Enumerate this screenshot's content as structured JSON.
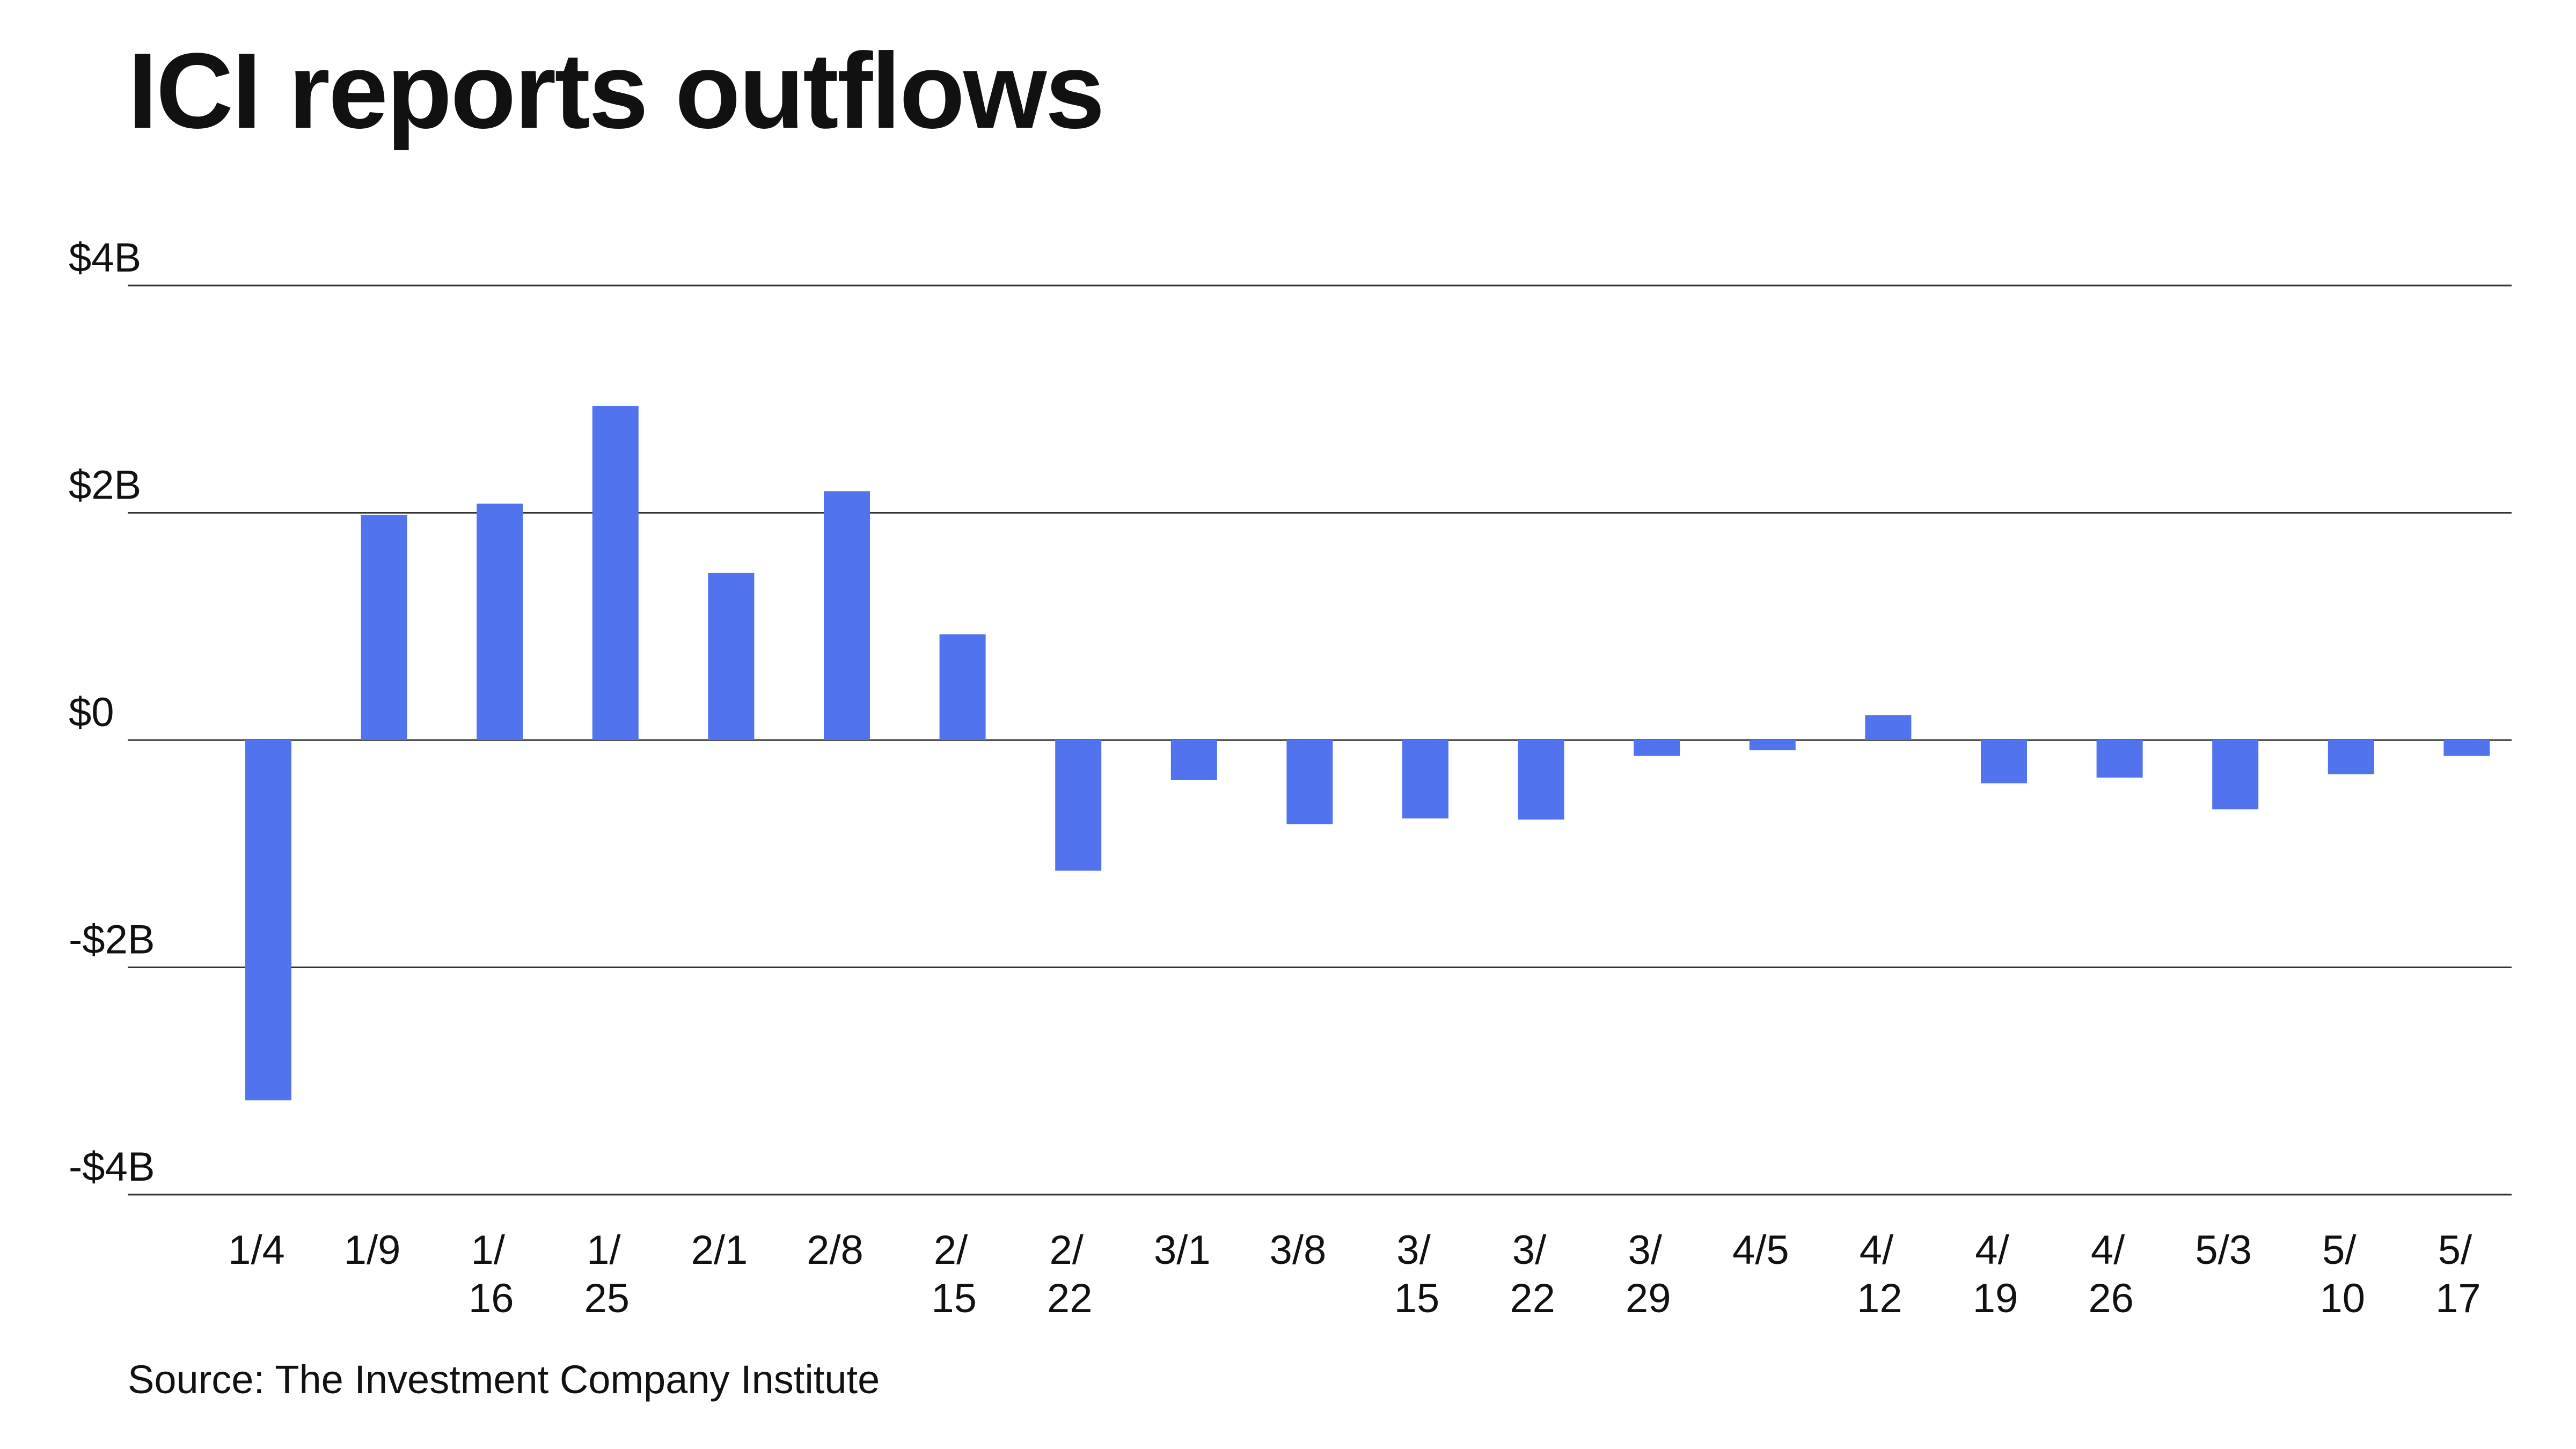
{
  "title": "ICI reports outflows",
  "source": "Source: The Investment Company Institute",
  "colors": {
    "bar": "#5173ee",
    "grid": "#333333",
    "text": "#111111"
  },
  "chart_data": {
    "type": "bar",
    "title": "ICI reports outflows",
    "xlabel": "",
    "ylabel": "",
    "ylim": [
      -4,
      4
    ],
    "grid": true,
    "legend": "none",
    "y_ticks": [
      {
        "value": 4,
        "label": "$4B"
      },
      {
        "value": 2,
        "label": "$2B"
      },
      {
        "value": 0,
        "label": "$0"
      },
      {
        "value": -2,
        "label": "-$2B"
      },
      {
        "value": -4,
        "label": "-$4B"
      }
    ],
    "categories": [
      {
        "line1": "1/4",
        "line2": ""
      },
      {
        "line1": "1/9",
        "line2": ""
      },
      {
        "line1": "1/",
        "line2": "16"
      },
      {
        "line1": "1/",
        "line2": "25"
      },
      {
        "line1": "2/1",
        "line2": ""
      },
      {
        "line1": "2/8",
        "line2": ""
      },
      {
        "line1": "2/",
        "line2": "15"
      },
      {
        "line1": "2/",
        "line2": "22"
      },
      {
        "line1": "3/1",
        "line2": ""
      },
      {
        "line1": "3/8",
        "line2": ""
      },
      {
        "line1": "3/",
        "line2": "15"
      },
      {
        "line1": "3/",
        "line2": "22"
      },
      {
        "line1": "3/",
        "line2": "29"
      },
      {
        "line1": "4/5",
        "line2": ""
      },
      {
        "line1": "4/",
        "line2": "12"
      },
      {
        "line1": "4/",
        "line2": "19"
      },
      {
        "line1": "4/",
        "line2": "26"
      },
      {
        "line1": "5/3",
        "line2": ""
      },
      {
        "line1": "5/",
        "line2": "10"
      },
      {
        "line1": "5/",
        "line2": "17"
      }
    ],
    "values": [
      -3.17,
      1.98,
      2.08,
      2.94,
      1.47,
      2.19,
      0.93,
      -1.15,
      -0.35,
      -0.74,
      -0.69,
      -0.7,
      -0.14,
      -0.09,
      0.22,
      -0.38,
      -0.33,
      -0.61,
      -0.3,
      -0.14
    ]
  }
}
